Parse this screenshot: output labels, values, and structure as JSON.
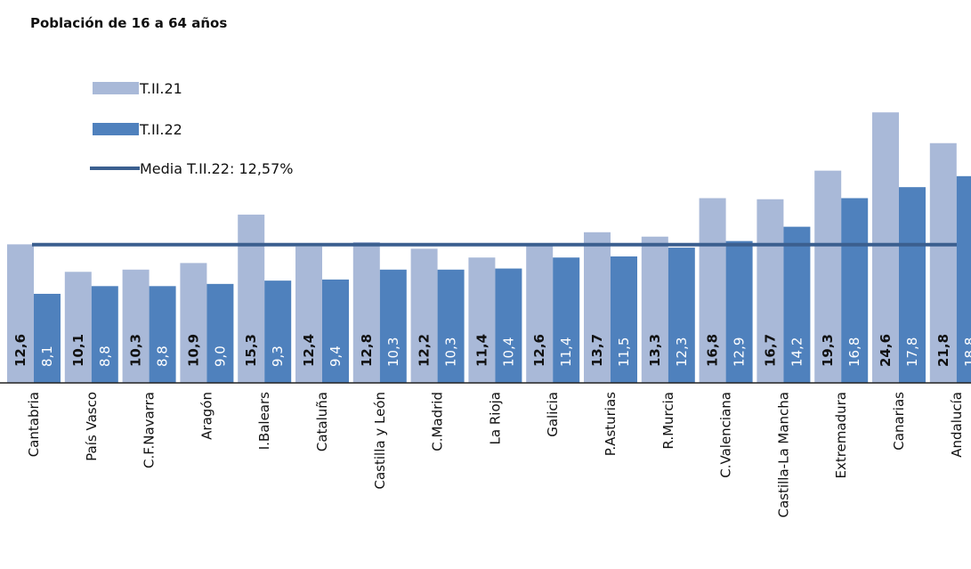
{
  "chart_data": {
    "type": "bar",
    "title": "Población de 16 a 64 años",
    "categories": [
      "Cantabria",
      "País Vasco",
      "C.F.Navarra",
      "Aragón",
      "I.Balears",
      "Cataluña",
      "Castilla y León",
      "C.Madrid",
      "La Rioja",
      "Galicia",
      "P.Asturias",
      "R.Murcia",
      "C.Valenciana",
      "Castilla-La Mancha",
      "Extremadura",
      "Canarias",
      "Andalucía"
    ],
    "series": [
      {
        "name": "T.II.21",
        "color": "#a9b9d8",
        "values": [
          12.6,
          10.1,
          10.3,
          10.9,
          15.3,
          12.4,
          12.8,
          12.2,
          11.4,
          12.6,
          13.7,
          13.3,
          16.8,
          16.7,
          19.3,
          24.6,
          21.8
        ],
        "labels": [
          "12,6",
          "10,1",
          "10,3",
          "10,9",
          "15,3",
          "12,4",
          "12,8",
          "12,2",
          "11,4",
          "12,6",
          "13,7",
          "13,3",
          "16,8",
          "16,7",
          "19,3",
          "24,6",
          "21,8"
        ]
      },
      {
        "name": "T.II.22",
        "color": "#4f81bd",
        "values": [
          8.1,
          8.8,
          8.8,
          9.0,
          9.3,
          9.4,
          10.3,
          10.3,
          10.4,
          11.4,
          11.5,
          12.3,
          12.9,
          14.2,
          16.8,
          17.8,
          18.8
        ],
        "labels": [
          "8,1",
          "8,8",
          "8,8",
          "9,0",
          "9,3",
          "9,4",
          "10,3",
          "10,3",
          "10,4",
          "11,4",
          "11,5",
          "12,3",
          "12,9",
          "14,2",
          "16,8",
          "17,8",
          "18,8"
        ]
      }
    ],
    "reference_line": {
      "name": "Media T.II.22: 12,57%",
      "value": 12.57,
      "color": "#3b5f8f"
    },
    "ylim": [
      0,
      30
    ],
    "grid": false,
    "legend_position": "top-left",
    "label_orientation": "vertical"
  }
}
